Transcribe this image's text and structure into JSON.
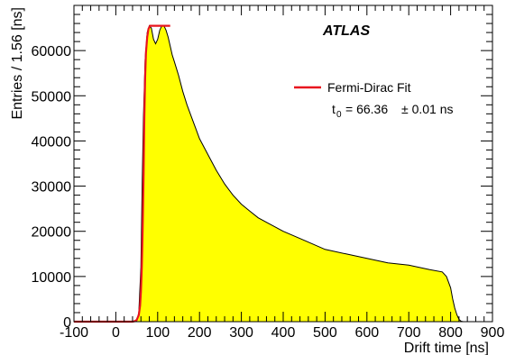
{
  "chart_data": {
    "type": "area",
    "title": "",
    "xlabel": "Drift time [ns]",
    "ylabel": "Entries / 1.56 [ns]",
    "xlim": [
      -100,
      900
    ],
    "ylim": [
      0,
      70000
    ],
    "x_ticks": [
      -100,
      0,
      100,
      200,
      300,
      400,
      500,
      600,
      700,
      800,
      900
    ],
    "y_ticks": [
      0,
      10000,
      20000,
      30000,
      40000,
      50000,
      60000
    ],
    "grid": false,
    "legend_position": "top-right",
    "experiment_label": "ATLAS",
    "histogram_color": "#ffff00",
    "fit_color": "#e8141e",
    "series": [
      {
        "name": "",
        "kind": "histogram",
        "x": [
          -100,
          40,
          50,
          55,
          60,
          63,
          66,
          70,
          75,
          80,
          85,
          90,
          95,
          100,
          105,
          110,
          115,
          120,
          125,
          130,
          135,
          140,
          145,
          150,
          160,
          170,
          180,
          190,
          200,
          220,
          240,
          260,
          280,
          300,
          320,
          340,
          360,
          380,
          400,
          450,
          500,
          550,
          600,
          650,
          700,
          750,
          780,
          790,
          800,
          805,
          810,
          815,
          820,
          825,
          830,
          840,
          900
        ],
        "y": [
          0,
          0,
          200,
          2000,
          12000,
          30000,
          45000,
          58000,
          64000,
          65500,
          65000,
          62500,
          61500,
          62500,
          64500,
          65500,
          65500,
          64500,
          63000,
          61000,
          59000,
          57500,
          56000,
          54500,
          51000,
          48000,
          45500,
          43000,
          40500,
          37000,
          33500,
          30500,
          28000,
          26000,
          24500,
          23000,
          22000,
          21000,
          20000,
          18000,
          16000,
          15000,
          14000,
          13000,
          12500,
          11500,
          11000,
          10000,
          7500,
          5000,
          3000,
          1500,
          500,
          100,
          0,
          0,
          0
        ]
      },
      {
        "name": "Fermi-Dirac Fit",
        "kind": "fit",
        "x": [
          -100,
          40,
          45,
          50,
          55,
          58,
          60,
          62,
          64,
          66.36,
          68,
          70,
          72,
          75,
          78,
          82,
          130
        ],
        "y": [
          0,
          0,
          100,
          400,
          1500,
          3500,
          6500,
          12000,
          20000,
          32750,
          45000,
          54000,
          59500,
          63000,
          64800,
          65500,
          65500
        ]
      }
    ],
    "annotations": {
      "t0_symbol": "t",
      "t0_subscript": "0",
      "t0_value": "= 66.36",
      "t0_error": "± 0.01 ns"
    }
  }
}
